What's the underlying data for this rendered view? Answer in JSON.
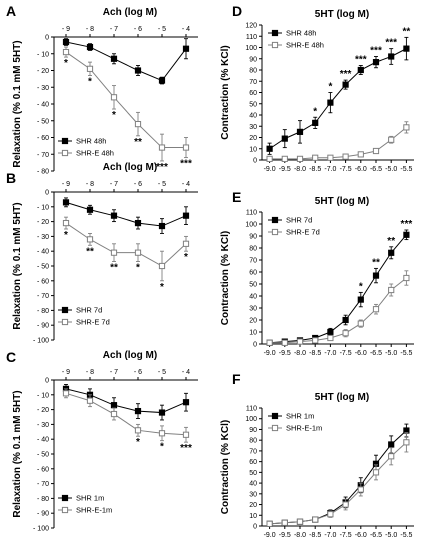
{
  "chart_data": [
    {
      "id": "A",
      "panel_label": "A",
      "type": "line",
      "title": "Ach (log M)",
      "ylabel": "Relaxation (% 0.1 mM 5HT)",
      "xlabel": "",
      "x_ticks": [
        "- 9",
        "- 8",
        "- 7",
        "- 6",
        "- 5",
        "- 4"
      ],
      "y_ticks": [
        "0",
        "- 10",
        "- 20",
        "- 30",
        "- 40",
        "- 50",
        "- 60",
        "- 70",
        "- 80"
      ],
      "ylim": [
        -80,
        0
      ],
      "x_axis_position": "top",
      "legend_position": "bottom-left",
      "series": [
        {
          "name": "SHR 48h",
          "marker": "filled-square",
          "values": [
            -3,
            -6,
            -13,
            -20,
            -26,
            -7
          ],
          "errors": [
            2,
            2,
            3,
            3,
            2,
            6
          ]
        },
        {
          "name": "SHR-E 48h",
          "marker": "open-square",
          "values": [
            -9,
            -19,
            -36,
            -52,
            -66,
            -66
          ],
          "errors": [
            3,
            4,
            7,
            7,
            8,
            6
          ]
        }
      ],
      "annotations": [
        {
          "text": "*",
          "point": 0,
          "series": 1
        },
        {
          "text": "*",
          "point": 1,
          "series": 1
        },
        {
          "text": "*",
          "point": 2,
          "series": 1
        },
        {
          "text": "**",
          "point": 3,
          "series": 1
        },
        {
          "text": "***",
          "point": 4,
          "series": 1
        },
        {
          "text": "***",
          "point": 5,
          "series": 1
        }
      ]
    },
    {
      "id": "B",
      "panel_label": "B",
      "type": "line",
      "title": "Ach (log M)",
      "ylabel": "Relaxation (% 0.1 mM 5HT)",
      "xlabel": "",
      "x_ticks": [
        "- 9",
        "- 8",
        "- 7",
        "- 6",
        "- 5",
        "- 4"
      ],
      "y_ticks": [
        "0",
        "- 10",
        "- 20",
        "- 30",
        "- 40",
        "- 50",
        "- 60",
        "- 70",
        "- 80",
        "- 90",
        "- 100"
      ],
      "ylim": [
        -100,
        0
      ],
      "x_axis_position": "top",
      "legend_position": "bottom-left",
      "series": [
        {
          "name": "SHR 7d",
          "marker": "filled-square",
          "values": [
            -7,
            -12,
            -16,
            -21,
            -23,
            -16
          ],
          "errors": [
            3,
            3,
            4,
            4,
            5,
            6
          ]
        },
        {
          "name": "SHR-E 7d",
          "marker": "open-square",
          "values": [
            -21,
            -32,
            -41,
            -41,
            -50,
            -35
          ],
          "errors": [
            4,
            4,
            6,
            6,
            10,
            5
          ]
        }
      ],
      "annotations": [
        {
          "text": "*",
          "point": 0,
          "series": 1
        },
        {
          "text": "**",
          "point": 1,
          "series": 1
        },
        {
          "text": "**",
          "point": 2,
          "series": 1
        },
        {
          "text": "*",
          "point": 3,
          "series": 1
        },
        {
          "text": "*",
          "point": 4,
          "series": 1
        },
        {
          "text": "*",
          "point": 5,
          "series": 1
        }
      ]
    },
    {
      "id": "C",
      "panel_label": "C",
      "type": "line",
      "title": "Ach (log M)",
      "ylabel": "Relaxation (% 0.1 mM 5HT)",
      "xlabel": "",
      "x_ticks": [
        "- 9",
        "- 8",
        "- 7",
        "- 6",
        "- 5",
        "- 4"
      ],
      "y_ticks": [
        "0",
        "- 10",
        "- 20",
        "- 30",
        "- 40",
        "- 50",
        "- 60",
        "- 70",
        "- 80",
        "- 90",
        "- 100"
      ],
      "ylim": [
        -100,
        0
      ],
      "x_axis_position": "top",
      "legend_position": "bottom-left",
      "series": [
        {
          "name": "SHR 1m",
          "marker": "filled-square",
          "values": [
            -6,
            -10,
            -17,
            -21,
            -22,
            -15
          ],
          "errors": [
            3,
            4,
            5,
            5,
            5,
            6
          ]
        },
        {
          "name": "SHR-E-1m",
          "marker": "open-square",
          "values": [
            -9,
            -14,
            -23,
            -34,
            -36,
            -37
          ],
          "errors": [
            3,
            4,
            4,
            4,
            5,
            5
          ]
        }
      ],
      "annotations": [
        {
          "text": "*",
          "point": 3,
          "series": 1
        },
        {
          "text": "*",
          "point": 4,
          "series": 1
        },
        {
          "text": "***",
          "point": 5,
          "series": 1
        }
      ]
    },
    {
      "id": "D",
      "panel_label": "D",
      "type": "line",
      "title": "5HT (log M)",
      "ylabel": "Contraction (% KCl)",
      "xlabel": "",
      "x_ticks": [
        "-9.0",
        "-9.5",
        "-8.0",
        "-8.5",
        "-7.0",
        "-7.5",
        "-6.0",
        "-6.5",
        "-5.0",
        "-5.5"
      ],
      "y_ticks": [
        "0",
        "10",
        "20",
        "30",
        "40",
        "50",
        "60",
        "70",
        "80",
        "90",
        "100",
        "110",
        "120"
      ],
      "ylim": [
        0,
        120
      ],
      "x_axis_position": "bottom",
      "legend_position": "top-left",
      "series": [
        {
          "name": "SHR 48h",
          "marker": "filled-square",
          "values": [
            10,
            19,
            25,
            33,
            51,
            67,
            80,
            87,
            92,
            99
          ],
          "errors": [
            5,
            8,
            10,
            5,
            9,
            4,
            4,
            5,
            7,
            10
          ]
        },
        {
          "name": "SHR-E 48h",
          "marker": "open-square",
          "values": [
            1,
            1,
            1,
            2,
            2,
            3,
            5,
            8,
            18,
            29
          ],
          "errors": [
            1,
            1,
            1,
            1,
            1,
            1,
            2,
            2,
            3,
            5
          ]
        }
      ],
      "annotations": [
        {
          "text": "*",
          "point": 3,
          "series": 0
        },
        {
          "text": "*",
          "point": 4,
          "series": 0
        },
        {
          "text": "***",
          "point": 5,
          "series": 0
        },
        {
          "text": "***",
          "point": 6,
          "series": 0
        },
        {
          "text": "***",
          "point": 7,
          "series": 0
        },
        {
          "text": "***",
          "point": 8,
          "series": 0
        },
        {
          "text": "**",
          "point": 9,
          "series": 0
        }
      ]
    },
    {
      "id": "E",
      "panel_label": "E",
      "type": "line",
      "title": "5HT (log M)",
      "ylabel": "Contraction (% KCl)",
      "xlabel": "",
      "x_ticks": [
        "-9.0",
        "-9.5",
        "-8.0",
        "-8.5",
        "-7.0",
        "-7.5",
        "-6.0",
        "-6.5",
        "-5.0",
        "-5.5"
      ],
      "y_ticks": [
        "0",
        "10",
        "20",
        "30",
        "40",
        "50",
        "60",
        "70",
        "80",
        "90",
        "100",
        "110"
      ],
      "ylim": [
        0,
        110
      ],
      "x_axis_position": "bottom",
      "legend_position": "top-left",
      "series": [
        {
          "name": "SHR 7d",
          "marker": "filled-square",
          "values": [
            1,
            2,
            3,
            5,
            10,
            20,
            37,
            57,
            76,
            91
          ],
          "errors": [
            1,
            1,
            1,
            2,
            3,
            4,
            6,
            6,
            5,
            4
          ]
        },
        {
          "name": "SHR-E 7d",
          "marker": "open-square",
          "values": [
            1,
            1,
            2,
            3,
            5,
            9,
            17,
            29,
            45,
            55
          ],
          "errors": [
            1,
            1,
            1,
            1,
            2,
            3,
            3,
            4,
            5,
            6
          ]
        }
      ],
      "annotations": [
        {
          "text": "*",
          "point": 6,
          "series": 0
        },
        {
          "text": "**",
          "point": 7,
          "series": 0
        },
        {
          "text": "**",
          "point": 8,
          "series": 0
        },
        {
          "text": "***",
          "point": 9,
          "series": 0
        }
      ]
    },
    {
      "id": "F",
      "panel_label": "F",
      "type": "line",
      "title": "5HT (log M)",
      "ylabel": "Contraction (% KCl)",
      "xlabel": "",
      "x_ticks": [
        "-9.0",
        "-9.5",
        "-8.0",
        "-8.5",
        "-7.0",
        "-7.5",
        "-6.0",
        "-6.5",
        "-5.0",
        "-5.5"
      ],
      "y_ticks": [
        "0",
        "10",
        "20",
        "30",
        "40",
        "50",
        "60",
        "70",
        "80",
        "90",
        "100",
        "110"
      ],
      "ylim": [
        0,
        110
      ],
      "x_axis_position": "bottom",
      "legend_position": "top-left",
      "series": [
        {
          "name": "SHR 1m",
          "marker": "filled-square",
          "values": [
            2,
            3,
            4,
            6,
            12,
            22,
            38,
            58,
            76,
            89
          ],
          "errors": [
            2,
            2,
            2,
            2,
            3,
            5,
            7,
            8,
            8,
            6
          ]
        },
        {
          "name": "SHR-E-1m",
          "marker": "open-square",
          "values": [
            2,
            3,
            4,
            6,
            11,
            20,
            34,
            50,
            65,
            78
          ],
          "errors": [
            2,
            2,
            2,
            2,
            3,
            5,
            6,
            7,
            8,
            9
          ]
        }
      ],
      "annotations": []
    }
  ]
}
